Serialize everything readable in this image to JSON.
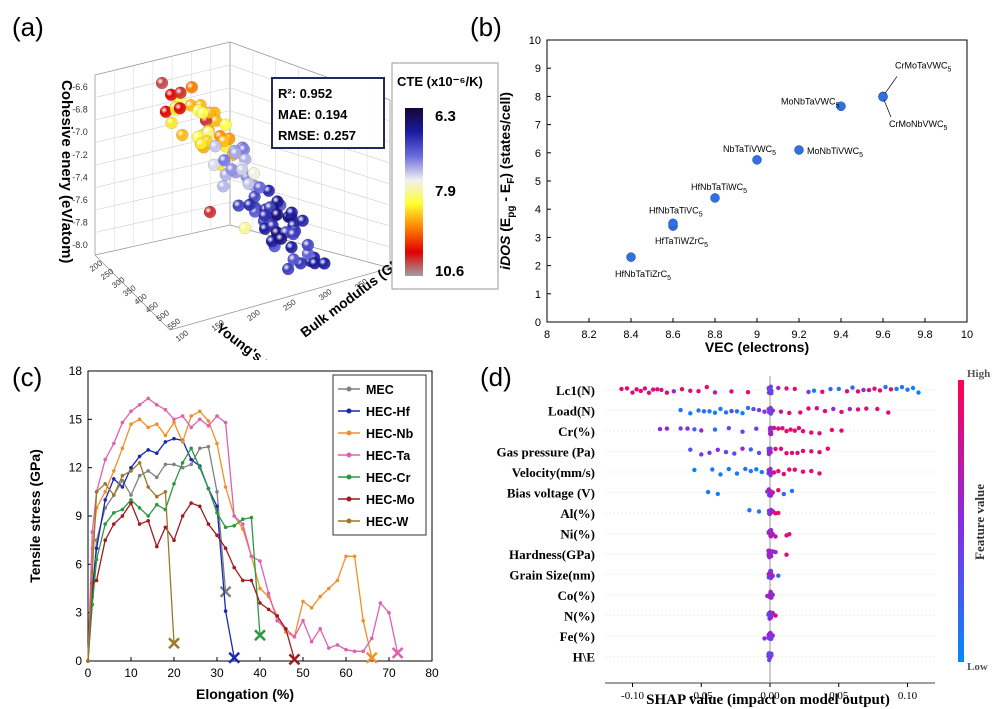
{
  "panel_labels": [
    "(a)",
    "(b)",
    "(c)",
    "(d)"
  ],
  "chart_data": [
    {
      "type": "scatter",
      "subtype": "3d-scatter",
      "axes": {
        "z_label": "Cohesive enery (eV/atom)",
        "z_ticks": [
          "-6.6",
          "-6.8",
          "-7.0",
          "-7.2",
          "-7.4",
          "-7.6",
          "-7.8",
          "-8.0"
        ],
        "y_label": "Young's modulus (GPa)",
        "y_ticks": [
          "200",
          "250",
          "300",
          "350",
          "400",
          "450",
          "500",
          "550"
        ],
        "x_label": "Bulk modulus (GPa)",
        "x_ticks": [
          "100",
          "150",
          "200",
          "250",
          "300",
          "350",
          "400"
        ]
      },
      "stats": [
        "R²: 0.952",
        "MAE: 0.194",
        "RMSE: 0.257"
      ],
      "colorbar": {
        "title": "CTE (x10⁻⁶/K)",
        "ticks": [
          "6.3",
          "7.9",
          "10.6"
        ],
        "colors": [
          "#1a0533",
          "#1a1aa0",
          "#6a6ae0",
          "#f0f0f0",
          "#ffff30",
          "#ff8000",
          "#e00000",
          "#a0a0a0"
        ]
      }
    },
    {
      "type": "scatter",
      "xlabel": "VEC (electrons)",
      "ylabel_parts": [
        "iDOS",
        " (E",
        "pg",
        " - E",
        "F",
        ") (states/cell)"
      ],
      "xlim": [
        8,
        10
      ],
      "ylim": [
        0,
        10
      ],
      "x_ticks": [
        "8",
        "8.2",
        "8.4",
        "8.6",
        "8.8",
        "9",
        "9.2",
        "9.4",
        "9.6",
        "9.8",
        "10"
      ],
      "y_ticks": [
        "0",
        "1",
        "2",
        "3",
        "4",
        "5",
        "6",
        "7",
        "8",
        "9",
        "10"
      ],
      "point_color": "#3070e0",
      "points": [
        {
          "x": 8.4,
          "y": 2.3,
          "label": "HfNbTaTiZrC5"
        },
        {
          "x": 8.6,
          "y": 3.4,
          "label": "HfTaTiWZrC5"
        },
        {
          "x": 8.6,
          "y": 3.5,
          "label": "HfNbTaTiVC5"
        },
        {
          "x": 8.8,
          "y": 4.4,
          "label": "HfNbTaTiWC5"
        },
        {
          "x": 9.0,
          "y": 5.75,
          "label": "NbTaTiVWC5"
        },
        {
          "x": 9.2,
          "y": 6.1,
          "label": "MoNbTiVWC5"
        },
        {
          "x": 9.4,
          "y": 7.65,
          "label": "MoNbTaVWC5"
        },
        {
          "x": 9.6,
          "y": 8.0,
          "label": "CrMoTaVWC5"
        },
        {
          "x": 9.6,
          "y": 7.98,
          "label": "CrMoNbVWC5"
        }
      ]
    },
    {
      "type": "line",
      "xlabel": "Elongation (%)",
      "ylabel": "Tensile stress (GPa)",
      "xlim": [
        0,
        80
      ],
      "ylim": [
        0,
        18
      ],
      "x_ticks": [
        "0",
        "10",
        "20",
        "30",
        "40",
        "50",
        "60",
        "70",
        "80"
      ],
      "y_ticks": [
        "0",
        "3",
        "6",
        "9",
        "12",
        "15",
        "18"
      ],
      "legend_position": "top-right",
      "series": [
        {
          "name": "MEC",
          "color": "#808080",
          "fracture": [
            32,
            4.3
          ],
          "x": [
            0,
            1,
            2,
            4,
            6,
            8,
            10,
            12,
            14,
            16,
            18,
            20,
            22,
            24,
            26,
            28,
            30,
            32
          ],
          "y": [
            0,
            4,
            7.5,
            9.5,
            10.3,
            11.2,
            10.3,
            11.5,
            11.8,
            11.4,
            12.2,
            12.2,
            12.0,
            12.2,
            13.2,
            13.3,
            10.5,
            4.3
          ]
        },
        {
          "name": "HEC-Hf",
          "color": "#1a28b0",
          "fracture": [
            34,
            0.2
          ],
          "x": [
            0,
            1,
            2,
            4,
            6,
            8,
            10,
            12,
            14,
            16,
            18,
            20,
            22,
            24,
            26,
            28,
            30,
            32,
            34
          ],
          "y": [
            0,
            4.5,
            7,
            10,
            11.3,
            10.8,
            12,
            12.7,
            13.1,
            12.9,
            13.6,
            13.8,
            13.7,
            12.5,
            12.1,
            10.7,
            9.6,
            3.1,
            0.2
          ]
        },
        {
          "name": "HEC-Nb",
          "color": "#f0902a",
          "fracture": [
            66,
            0.2
          ],
          "x": [
            0,
            1,
            2,
            4,
            6,
            8,
            10,
            12,
            14,
            16,
            18,
            20,
            22,
            24,
            26,
            28,
            30,
            32,
            34,
            36,
            38,
            40,
            42,
            44,
            46,
            48,
            50,
            52,
            54,
            56,
            58,
            60,
            62,
            64,
            66
          ],
          "y": [
            0,
            7,
            9.5,
            10.5,
            11.8,
            13.2,
            14.7,
            15,
            14.5,
            14.7,
            14.0,
            14.8,
            13.6,
            15.2,
            15.5,
            14.9,
            13.5,
            10.8,
            9.0,
            8.2,
            6.5,
            4.5,
            4.0,
            2.8,
            1.8,
            1.5,
            3.7,
            3.3,
            4.0,
            4.5,
            5.0,
            6.5,
            6.5,
            2.5,
            0.2
          ]
        },
        {
          "name": "HEC-Ta",
          "color": "#e060b0",
          "fracture": [
            72,
            0.5
          ],
          "x": [
            0,
            1,
            2,
            4,
            6,
            8,
            10,
            12,
            14,
            16,
            18,
            20,
            22,
            24,
            26,
            28,
            30,
            32,
            34,
            36,
            38,
            40,
            42,
            44,
            46,
            48,
            50,
            52,
            54,
            56,
            58,
            60,
            62,
            64,
            66,
            68,
            70,
            72
          ],
          "y": [
            0,
            8,
            10.5,
            12.5,
            13.5,
            14.8,
            15.5,
            15.9,
            16.3,
            15.9,
            15.6,
            15.0,
            15.2,
            14.5,
            15.0,
            14.6,
            15.2,
            14.8,
            9.0,
            8.5,
            6.5,
            6.2,
            4.2,
            2.5,
            2.0,
            1.5,
            2.5,
            1.2,
            2.0,
            0.8,
            1.0,
            0.7,
            0.6,
            0.6,
            1.4,
            3.6,
            3.0,
            0.5
          ]
        },
        {
          "name": "HEC-Cr",
          "color": "#2a9a40",
          "fracture": [
            40,
            1.6
          ],
          "x": [
            0,
            1,
            2,
            4,
            6,
            8,
            10,
            12,
            14,
            16,
            18,
            20,
            22,
            24,
            26,
            28,
            30,
            32,
            34,
            36,
            38,
            40
          ],
          "y": [
            0,
            3.5,
            6.3,
            8.5,
            9.2,
            9.4,
            10,
            9.5,
            9.0,
            9.7,
            9.4,
            11.0,
            12.3,
            13.2,
            12.0,
            10.7,
            9.2,
            8.3,
            8.4,
            8.8,
            8.9,
            1.6
          ]
        },
        {
          "name": "HEC-Mo",
          "color": "#a01a20",
          "fracture": [
            48,
            0.1
          ],
          "x": [
            0,
            1,
            2,
            4,
            6,
            8,
            10,
            12,
            14,
            16,
            18,
            20,
            22,
            24,
            26,
            28,
            30,
            32,
            34,
            36,
            38,
            40,
            42,
            44,
            46,
            48
          ],
          "y": [
            0,
            4.8,
            5.0,
            7.5,
            8.5,
            9.0,
            9.8,
            8.5,
            8.7,
            7.1,
            8.3,
            7.5,
            9.0,
            9.8,
            9.6,
            8.5,
            7.8,
            7.0,
            5.8,
            5.0,
            5.0,
            3.6,
            3.2,
            2.8,
            2.0,
            0.1
          ]
        },
        {
          "name": "HEC-W",
          "color": "#9a7a2a",
          "fracture": [
            20,
            1.1
          ],
          "x": [
            0,
            1,
            2,
            4,
            6,
            8,
            10,
            12,
            14,
            16,
            18,
            20
          ],
          "y": [
            0,
            5.5,
            10.5,
            11.0,
            10.3,
            11.5,
            11.8,
            12.3,
            10.8,
            10.2,
            10.5,
            1.1
          ]
        }
      ]
    },
    {
      "type": "scatter",
      "subtype": "beeswarm",
      "xlabel": "SHAP value (impact on model output)",
      "xlim": [
        -0.12,
        0.12
      ],
      "x_ticks": [
        "-0.10",
        "-0.05",
        "0.00",
        "0.05",
        "0.10"
      ],
      "features": [
        "Lc1(N)",
        "Load(N)",
        "Cr(%)",
        "Gas pressure (Pa)",
        "Velocity(mm/s)",
        "Bias voltage (V)",
        "Al(%)",
        "Ni(%)",
        "Hardness(GPa)",
        "Grain Size(nm)",
        "Co(%)",
        "N(%)",
        "Fe(%)",
        "H\\E"
      ],
      "colorbar": {
        "title": "Feature value",
        "high": "High",
        "low": "Low",
        "colors": [
          "#ff0052",
          "#8a2be2",
          "#008bfb"
        ]
      },
      "points": [
        {
          "f": 0,
          "x": [
            -0.108,
            -0.104,
            -0.1,
            -0.097,
            -0.094,
            -0.091,
            -0.088,
            -0.085,
            -0.082,
            -0.079,
            -0.075,
            -0.07,
            -0.064,
            -0.058,
            -0.052,
            -0.046,
            -0.04,
            -0.028,
            -0.016,
            0.006,
            0.012,
            0.018,
            0.028,
            0.032,
            0.038,
            0.044,
            0.05,
            0.056,
            0.06,
            0.064,
            0.068,
            0.072,
            0.076,
            0.08,
            0.084,
            0.088,
            0.092,
            0.096,
            0.1,
            0.104,
            0.108
          ],
          "v": [
            0.9,
            0.9,
            0.85,
            0.9,
            0.9,
            0.8,
            0.9,
            0.85,
            0.9,
            0.8,
            0.9,
            0.6,
            0.9,
            0.9,
            0.85,
            0.9,
            0.7,
            0.9,
            0.9,
            0.6,
            0.85,
            0.9,
            0.4,
            0.1,
            0.9,
            0.2,
            0.1,
            0.85,
            0.2,
            0.9,
            0.6,
            0.8,
            0.9,
            0.9,
            0.1,
            0.9,
            0.05,
            0.1,
            0.1,
            0.05,
            0.05
          ]
        },
        {
          "f": 1,
          "x": [
            -0.065,
            -0.058,
            -0.052,
            -0.048,
            -0.044,
            -0.04,
            -0.036,
            -0.032,
            -0.028,
            -0.024,
            -0.02,
            -0.016,
            -0.012,
            -0.008,
            -0.004,
            0.002,
            0.008,
            0.014,
            0.022,
            0.028,
            0.034,
            0.04,
            0.046,
            0.052,
            0.058,
            0.064,
            0.07,
            0.078,
            0.086
          ],
          "v": [
            0.1,
            0.05,
            0.1,
            0.15,
            0.1,
            0.05,
            0.1,
            0.1,
            0.35,
            0.1,
            0.05,
            0.1,
            0.3,
            0.4,
            0.5,
            0.6,
            0.7,
            0.9,
            0.85,
            0.9,
            0.8,
            0.9,
            0.5,
            0.9,
            0.6,
            0.85,
            0.9,
            0.9,
            0.9
          ]
        },
        {
          "f": 2,
          "x": [
            -0.08,
            -0.075,
            -0.065,
            -0.06,
            -0.055,
            -0.05,
            -0.04,
            -0.03,
            -0.02,
            -0.01,
            0.003,
            0.006,
            0.009,
            0.012,
            0.015,
            0.018,
            0.021,
            0.024,
            0.03,
            0.036,
            0.045,
            0.052
          ],
          "v": [
            0.5,
            0.55,
            0.4,
            0.5,
            0.2,
            0.6,
            0.15,
            0.3,
            0.4,
            0.4,
            0.9,
            0.9,
            0.85,
            0.9,
            0.9,
            0.85,
            0.9,
            0.9,
            0.9,
            0.85,
            0.9,
            0.9
          ]
        },
        {
          "f": 3,
          "x": [
            -0.058,
            -0.05,
            -0.044,
            -0.038,
            -0.032,
            -0.026,
            -0.02,
            -0.014,
            -0.008,
            0.004,
            0.008,
            0.012,
            0.016,
            0.02,
            0.024,
            0.03,
            0.036,
            0.042
          ],
          "v": [
            0.3,
            0.4,
            0.45,
            0.5,
            0.4,
            0.3,
            0.6,
            0.2,
            0.3,
            0.9,
            0.85,
            0.9,
            0.9,
            0.8,
            0.9,
            0.85,
            0.9,
            0.9
          ]
        },
        {
          "f": 4,
          "x": [
            -0.055,
            -0.042,
            -0.036,
            -0.03,
            -0.024,
            -0.018,
            -0.014,
            -0.01,
            -0.006,
            0.003,
            0.006,
            0.01,
            0.014,
            0.018,
            0.024,
            0.03,
            0.036
          ],
          "v": [
            0.05,
            0.1,
            0.1,
            0.05,
            0.1,
            0.15,
            0.1,
            0.05,
            0.1,
            0.9,
            0.85,
            0.9,
            0.9,
            0.85,
            0.9,
            0.85,
            0.9
          ]
        },
        {
          "f": 5,
          "x": [
            -0.045,
            -0.038,
            -0.002,
            0.002,
            0.006,
            0.01,
            0.016
          ],
          "v": [
            0.1,
            0.05,
            0.5,
            0.8,
            0.9,
            0.2,
            0.1
          ]
        },
        {
          "f": 6,
          "x": [
            -0.015,
            -0.008,
            0.002,
            0.004,
            0.006
          ],
          "v": [
            0.1,
            0.1,
            0.8,
            0.9,
            0.9
          ]
        },
        {
          "f": 7,
          "x": [
            0.002,
            0.004,
            0.012,
            0.014
          ],
          "v": [
            0.6,
            0.7,
            0.9,
            0.85
          ]
        },
        {
          "f": 8,
          "x": [
            0.0,
            0.002,
            0.004,
            0.012
          ],
          "v": [
            0.5,
            0.6,
            0.55,
            0.9
          ]
        },
        {
          "f": 9,
          "x": [
            0.0,
            0.002,
            0.006
          ],
          "v": [
            0.5,
            0.55,
            0.2
          ]
        },
        {
          "f": 10,
          "x": [
            -0.002,
            0.0,
            0.002
          ],
          "v": [
            0.5,
            0.6,
            0.4
          ]
        },
        {
          "f": 11,
          "x": [
            0.0,
            0.002,
            0.004
          ],
          "v": [
            0.55,
            0.5,
            0.9
          ]
        },
        {
          "f": 12,
          "x": [
            -0.004,
            0.0,
            0.002
          ],
          "v": [
            0.5,
            0.6,
            0.5
          ]
        },
        {
          "f": 13,
          "x": [
            -0.001,
            0.001
          ],
          "v": [
            0.5,
            0.55
          ]
        }
      ]
    }
  ]
}
